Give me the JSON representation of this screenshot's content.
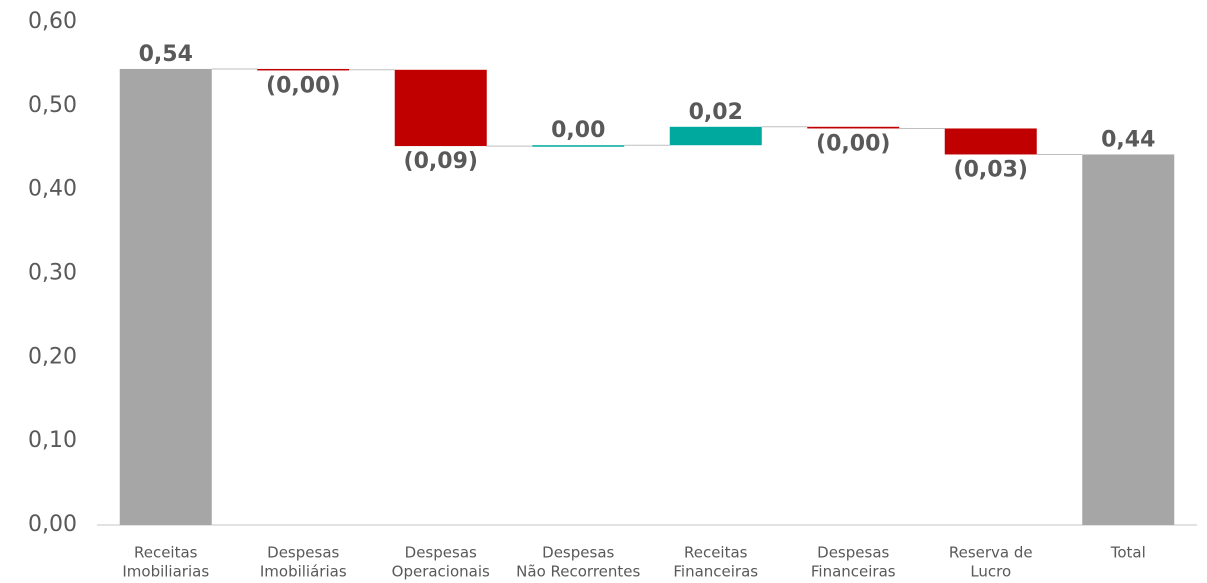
{
  "chart_data": {
    "type": "waterfall",
    "categories": [
      [
        "Receitas",
        "Imobiliarias"
      ],
      [
        "Despesas",
        "Imobiliárias"
      ],
      [
        "Despesas",
        "Operacionais"
      ],
      [
        "Despesas",
        "Não Recorrentes"
      ],
      [
        "Receitas",
        "Financeiras"
      ],
      [
        "Despesas",
        "Financeiras"
      ],
      [
        "Reserva de",
        "Lucro"
      ],
      [
        "Total"
      ]
    ],
    "values": [
      0.544,
      -0.001,
      -0.091,
      0.001,
      0.022,
      -0.002,
      -0.031,
      0.442
    ],
    "value_labels": [
      "0,54",
      "(0,00)",
      "(0,09)",
      "0,00",
      "0,02",
      "(0,00)",
      "(0,03)",
      "0,44"
    ],
    "total_indices": [
      0,
      7
    ],
    "total_color": "#a6a6a6",
    "increase_color": "#00a99d",
    "decrease_color": "#c00000",
    "ylim": [
      0,
      0.6
    ],
    "yticks": [
      {
        "value": 0,
        "label": "0,00"
      },
      {
        "value": 0.1,
        "label": "0,10"
      },
      {
        "value": 0.2,
        "label": "0,20"
      },
      {
        "value": 0.3,
        "label": "0,30"
      },
      {
        "value": 0.4,
        "label": "0,40"
      },
      {
        "value": 0.5,
        "label": "0,50"
      },
      {
        "value": 0.6,
        "label": "0,60"
      }
    ],
    "grid": false
  }
}
